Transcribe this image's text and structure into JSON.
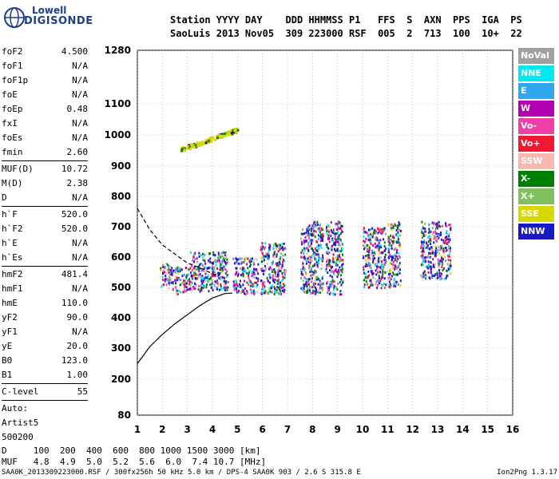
{
  "logo": {
    "line1": "Lowell",
    "line2": "DIGISONDE"
  },
  "header": {
    "row1": "Station YYYY DAY    DDD HHMMSS P1   FFS  S  AXN  PPS  IGA  PS",
    "row2": "SaoLuis 2013 Nov05  309 223000 RSF  005  2  713  100  10+  22"
  },
  "params": [
    {
      "k": "foF2",
      "v": "4.500"
    },
    {
      "k": "foF1",
      "v": "N/A"
    },
    {
      "k": "foF1p",
      "v": "N/A"
    },
    {
      "k": "foE",
      "v": "N/A"
    },
    {
      "k": "foEp",
      "v": "0.48"
    },
    {
      "k": "fxI",
      "v": "N/A"
    },
    {
      "k": "foEs",
      "v": "N/A"
    },
    {
      "k": "fmin",
      "v": "2.60"
    },
    {
      "k": "MUF(D)",
      "v": "10.72"
    },
    {
      "k": "M(D)",
      "v": "2.38"
    },
    {
      "k": "D",
      "v": "N/A"
    },
    {
      "k": "h`F",
      "v": "520.0"
    },
    {
      "k": "h`F2",
      "v": "520.0"
    },
    {
      "k": "h`E",
      "v": "N/A"
    },
    {
      "k": "h`Es",
      "v": "N/A"
    },
    {
      "k": "hmF2",
      "v": "481.4"
    },
    {
      "k": "hmF1",
      "v": "N/A"
    },
    {
      "k": "hmE",
      "v": "110.0"
    },
    {
      "k": "yF2",
      "v": "90.0"
    },
    {
      "k": "yF1",
      "v": "N/A"
    },
    {
      "k": "yE",
      "v": "20.0"
    },
    {
      "k": "B0",
      "v": "123.0"
    },
    {
      "k": "B1",
      "v": "1.00"
    },
    {
      "k": "C-level",
      "v": "55"
    }
  ],
  "auto": {
    "l1": "Auto:",
    "l2": "Artist5",
    "l3": "500200"
  },
  "legend": [
    {
      "label": "NoVal",
      "color": "#a0a0a0"
    },
    {
      "label": "NNE",
      "color": "#00e8f0"
    },
    {
      "label": "E",
      "color": "#30a8f0"
    },
    {
      "label": "W",
      "color": "#b000b0"
    },
    {
      "label": "Vo-",
      "color": "#f040a8"
    },
    {
      "label": "Vo+",
      "color": "#f01830"
    },
    {
      "label": "SSW",
      "color": "#f8b8b0"
    },
    {
      "label": "X-",
      "color": "#008000"
    },
    {
      "label": "X+",
      "color": "#80c060"
    },
    {
      "label": "SSE",
      "color": "#d8d800"
    },
    {
      "label": "NNW",
      "color": "#1818c8"
    }
  ],
  "bottom": {
    "dRow": "D     100  200  400  600  800 1000 1500 3000 [km]",
    "mufRow": "MUF   4.8  4.9  5.0  5.2  5.6  6.0  7.4 10.7 [MHz]"
  },
  "footer": "SAA0K_2013309223000.RSF / 300fx256h 50 kHz 5.0 km / DPS-4 SAA0K 903 / 2.6 S 315.8 E",
  "version": "Ion2Png 1.3.17",
  "chart_data": {
    "type": "scatter",
    "x_ticks": [
      "1",
      "2",
      "3",
      "4",
      "5",
      "6",
      "7",
      "8",
      "9",
      "10",
      "11",
      "12",
      "13",
      "14",
      "15",
      "16"
    ],
    "y_ticks": [
      "80",
      "200",
      "300",
      "400",
      "500",
      "600",
      "700",
      "800",
      "900",
      "1000",
      "1100",
      "1280"
    ],
    "xlim": [
      1,
      16
    ],
    "y_scale": "nonlinear",
    "xlabel": "",
    "ylabel": "",
    "grid": true,
    "clusters": [
      {
        "x": [
          1.9,
          2.3
        ],
        "y": [
          500,
          590
        ]
      },
      {
        "x": [
          2.3,
          3.1
        ],
        "y": [
          480,
          570
        ]
      },
      {
        "x": [
          3.1,
          4.6
        ],
        "y": [
          490,
          620
        ]
      },
      {
        "x": [
          4.8,
          5.8
        ],
        "y": [
          480,
          600
        ]
      },
      {
        "x": [
          5.9,
          6.9
        ],
        "y": [
          480,
          650
        ]
      },
      {
        "x": [
          7.5,
          8.4
        ],
        "y": [
          480,
          720
        ]
      },
      {
        "x": [
          8.5,
          9.2
        ],
        "y": [
          480,
          720
        ]
      },
      {
        "x": [
          10.0,
          10.9
        ],
        "y": [
          500,
          700
        ]
      },
      {
        "x": [
          11.0,
          11.5
        ],
        "y": [
          500,
          720
        ]
      },
      {
        "x": [
          12.3,
          13.5
        ],
        "y": [
          530,
          720
        ]
      }
    ],
    "yellow_trace": {
      "x": [
        2.7,
        5.0
      ],
      "y": [
        955,
        1020
      ]
    },
    "solid_curve": {
      "x": [
        1.0,
        1.5,
        2.0,
        2.5,
        3.0,
        3.5,
        4.0,
        4.5,
        4.8
      ],
      "y": [
        250,
        305,
        345,
        380,
        410,
        440,
        465,
        480,
        481
      ]
    },
    "dashed_curve": {
      "x": [
        1.0,
        1.5,
        2.0,
        2.5,
        3.0,
        3.5,
        4.0,
        4.3
      ],
      "y": [
        760,
        690,
        640,
        610,
        580,
        565,
        545,
        540
      ]
    }
  }
}
